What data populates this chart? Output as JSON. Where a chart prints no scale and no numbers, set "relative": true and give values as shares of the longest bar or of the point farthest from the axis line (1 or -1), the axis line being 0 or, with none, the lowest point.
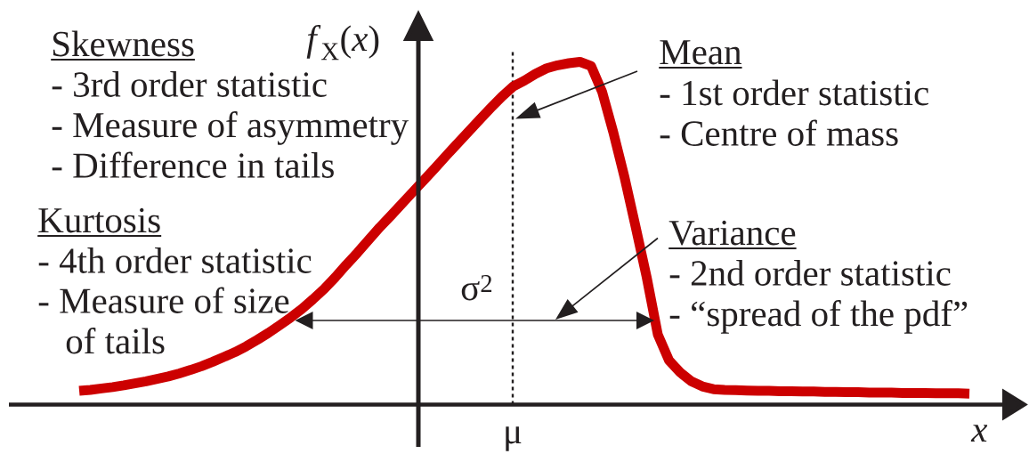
{
  "chart_data": {
    "type": "line",
    "relative": true,
    "marker": "none",
    "xlabel": "x",
    "ylabel": "*f*$_{X}$(*x*)",
    "categories": [
      null,
      null,
      null,
      null,
      null,
      null,
      null,
      null,
      null,
      null,
      null,
      null,
      null,
      null,
      null,
      null,
      null,
      null,
      null,
      null,
      null,
      null,
      null,
      null,
      null,
      null,
      null,
      null,
      null,
      null,
      null,
      null,
      null,
      null,
      null,
      null,
      null,
      null,
      null,
      null,
      null,
      null,
      null,
      null,
      null,
      null,
      null,
      null,
      null,
      null,
      null,
      null,
      null,
      null,
      null,
      null,
      null,
      null,
      null,
      null,
      null,
      null,
      null,
      null,
      null,
      null,
      null,
      null,
      null,
      null,
      null,
      null,
      null,
      null,
      null,
      null,
      null,
      null,
      null,
      null,
      null
    ],
    "series": [
      {
        "color": "#cc0000",
        "values": [
          0.04,
          0.043,
          0.047,
          0.051,
          0.056,
          0.062,
          0.068,
          0.075,
          0.082,
          0.091,
          0.101,
          0.112,
          0.125,
          0.139,
          0.153,
          0.17,
          0.189,
          0.209,
          0.231,
          0.254,
          0.279,
          0.307,
          0.337,
          0.371,
          0.408,
          0.443,
          0.48,
          0.517,
          0.551,
          0.586,
          0.621,
          0.656,
          0.691,
          0.727,
          0.762,
          0.797,
          0.832,
          0.866,
          0.899,
          0.928,
          0.945,
          0.965,
          0.981,
          0.99,
          0.996,
          1.0,
          0.988,
          0.912,
          0.794,
          0.664,
          0.519,
          0.371,
          0.204,
          0.129,
          0.094,
          0.068,
          0.053,
          0.045,
          0.043,
          0.042,
          0.041,
          0.04,
          0.04,
          0.039,
          0.039,
          0.038,
          0.038,
          0.037,
          0.037,
          0.036,
          0.036,
          0.035,
          0.035,
          0.035,
          0.034,
          0.034,
          0.034,
          0.033,
          0.033,
          0.033,
          0.032
        ]
      }
    ],
    "annotations": [
      "Skewness",
      "- 3rd order statistic",
      "- Measure of asymmetry",
      "- Difference in tails",
      "Mean",
      "- 1st order statistic",
      "- Centre of mass",
      "Kurtosis",
      "- 4th order statistic",
      "- Measure of size of tails",
      "Variance",
      "- 2nd order statistic",
      "- “spread of the pdf”",
      "σ$^{2}$",
      "μ"
    ]
  }
}
